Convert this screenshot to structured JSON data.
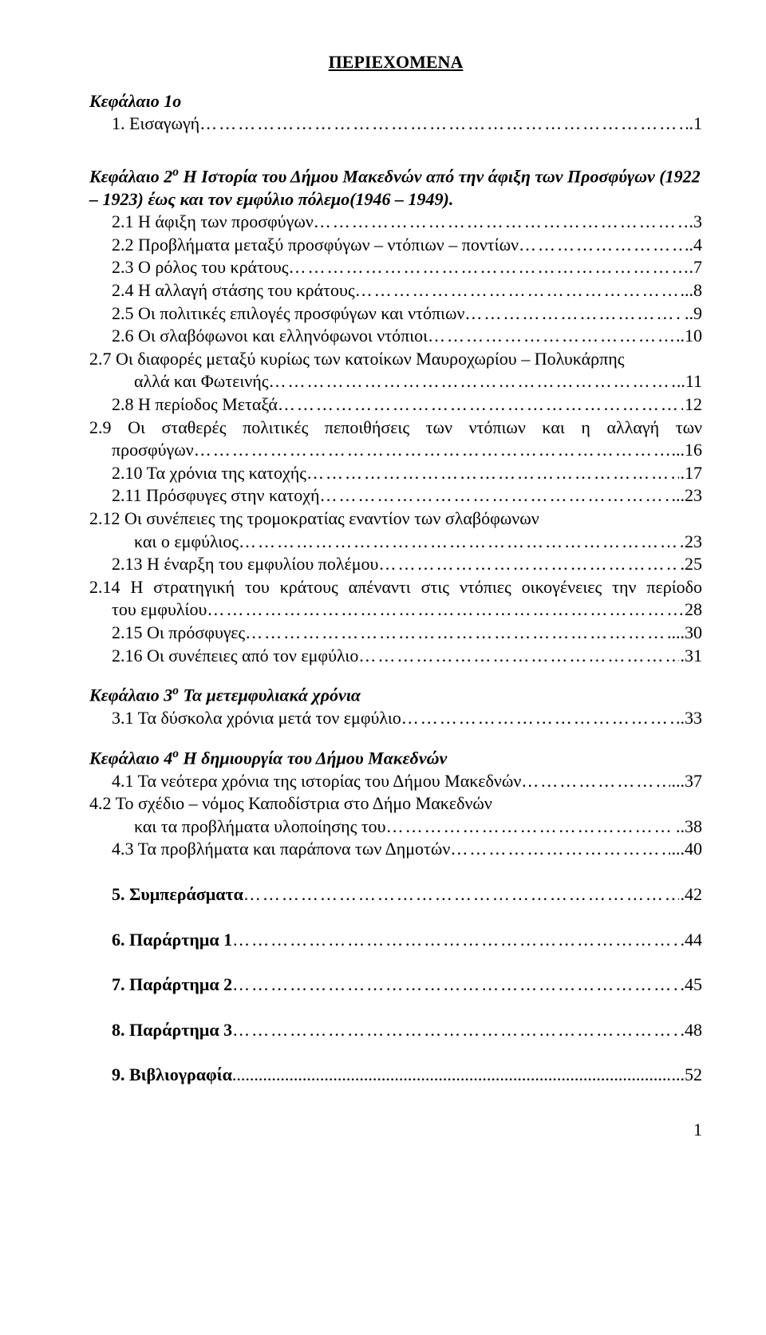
{
  "title": "ΠΕΡΙΕΧΟΜΕΝΑ",
  "ch1": {
    "head": "Κεφάλαιο 1ο",
    "e1": {
      "label": "1. Εισαγωγή",
      "page": ".1"
    }
  },
  "ch2": {
    "head_a": "Κεφάλαιο 2",
    "head_sup": "ο",
    "head_b": "   Η Ιστορία του Δήμου Μακεδνών από την άφιξη των Προσφύγων (1922 – 1923) έως και τον εμφύλιο πόλεμο(1946 – 1949).",
    "e1": {
      "label": "2.1 Η άφιξη των προσφύγων",
      "page": ".3"
    },
    "e2": {
      "label": "2.2 Προβλήματα μεταξύ προσφύγων – ντόπιων – ποντίων",
      "page": "..4"
    },
    "e3": {
      "label": "2.3 Ο ρόλος του κράτους",
      "page": ".7"
    },
    "e4": {
      "label": "2.4 Η αλλαγή στάσης του κράτους",
      "page": "...8"
    },
    "e5": {
      "label": "2.5 Οι πολιτικές επιλογές προσφύγων και ντόπιων",
      "page": "..9"
    },
    "e6": {
      "label": "2.6 Οι σλαβόφωνοι και ελληνόφωνοι ντόπιοι",
      "page": "..10"
    },
    "e7a": {
      "label": "2.7 Οι διαφορές μεταξύ κυρίως των κατοίκων Μαυροχωρίου – Πολυκάρπης"
    },
    "e7b": {
      "label": "αλλά και Φωτεινής",
      "page": "..11"
    },
    "e8": {
      "label": "2.8 Η περίοδος Μεταξά",
      "page": "12"
    },
    "e9a": "2.9 Οι  σταθερές  πολιτικές  πεποιθήσεις  των  ντόπιων  και  η  αλλαγή  των",
    "e9b": {
      "label": "προσφύγων",
      "page": "...16"
    },
    "e10": {
      "label": "2.10 Τα χρόνια της κατοχής",
      "page": ".17"
    },
    "e11": {
      "label": "2.11 Πρόσφυγες στην κατοχή",
      "page": "...23"
    },
    "e12a": {
      "label": "2.12 Οι συνέπειες της τρομοκρατίας εναντίον των σλαβόφωνων"
    },
    "e12b": {
      "label": "και ο εμφύλιος",
      "page": "23"
    },
    "e13": {
      "label": "2.13 Η έναρξη του εμφυλίου πολέμου",
      "page": ".25"
    },
    "e14a": "2.14 Η στρατηγική του κράτους απέναντι στις ντόπιες οικογένειες την περίοδο",
    "e14b": {
      "label": "του εμφυλίου",
      "page": "28"
    },
    "e15": {
      "label": "2.15 Οι πρόσφυγες",
      "page": "...30"
    },
    "e16": {
      "label": "2.16 Οι συνέπειες από τον εμφύλιο",
      "page": ".31"
    }
  },
  "ch3": {
    "head_a": "Κεφάλαιο 3",
    "head_sup": "ο",
    "head_b": " Τα μετεμφυλιακά χρόνια",
    "e1": {
      "label": "3.1 Τα δύσκολα χρόνια μετά τον εμφύλιο",
      "page": "..33"
    }
  },
  "ch4": {
    "head_a": "Κεφάλαιο 4",
    "head_sup": "ο",
    "head_b": "  Η δημιουργία του Δήμου Μακεδνών",
    "e1": {
      "label": "4.1 Τα νεότερα χρόνια της ιστορίας του Δήμου Μακεδνών",
      "page": "...37"
    },
    "e2a": {
      "label": "4.2 Το σχέδιο – νόμος Καποδίστρια στο Δήμο Μακεδνών"
    },
    "e2b": {
      "label": "και τα προβλήματα υλοποίησης του",
      "page": "..38"
    },
    "e3": {
      "label": "4.3 Τα προβλήματα και παράπονα των Δημοτών",
      "page": "...40"
    }
  },
  "s5": {
    "label": "5. Συμπεράσματα",
    "page": ".42"
  },
  "s6": {
    "label": "6. Παράρτημα 1",
    "page": ".44"
  },
  "s7": {
    "label": "7. Παράρτημα 2",
    "page": ".45"
  },
  "s8": {
    "label": "8. Παράρτημα 3",
    "page": ".48"
  },
  "s9": {
    "label": "9. Βιβλιογραφία",
    "page": "...52"
  },
  "pagenum": "1"
}
